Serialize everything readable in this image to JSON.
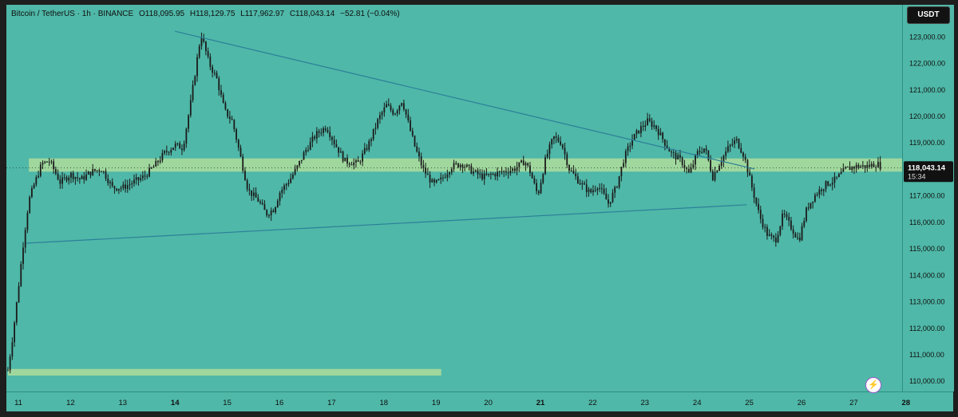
{
  "legend": {
    "symbol": "Bitcoin / TetherUS · 1h · BINANCE",
    "open": "O118,095.95",
    "high": "H118,129.75",
    "low": "L117,962.97",
    "close": "C118,043.14",
    "change": "−52.81 (−0.04%)"
  },
  "currency": "USDT",
  "price_tag": {
    "price": "118,043.14",
    "countdown": "15:34"
  },
  "colors": {
    "background": "#4fb8a8",
    "candle": "#1a1a1a",
    "trendline": "#2c7f9a",
    "zone": "#b9e29a"
  },
  "chart_data": {
    "type": "candlestick",
    "title": "",
    "xlabel": "",
    "ylabel": "",
    "ylim": [
      109600,
      124200
    ],
    "x_ticks": [
      "11",
      "12",
      "13",
      "14",
      "15",
      "16",
      "17",
      "18",
      "19",
      "20",
      "21",
      "22",
      "23",
      "24",
      "25",
      "26",
      "27",
      "28"
    ],
    "y_ticks": [
      110000,
      111000,
      112000,
      113000,
      114000,
      115000,
      116000,
      117000,
      118000,
      119000,
      120000,
      121000,
      122000,
      123000
    ],
    "y_tick_labels": [
      "110,000.00",
      "111,000.00",
      "112,000.00",
      "113,000.00",
      "114,000.00",
      "115,000.00",
      "116,000.00",
      "117,000.00",
      "118,000.00",
      "119,000.00",
      "120,000.00",
      "121,000.00",
      "122,000.00",
      "123,000.00"
    ],
    "price_path": [
      [
        10.8,
        110400
      ],
      [
        10.9,
        111800
      ],
      [
        11.0,
        113500
      ],
      [
        11.1,
        115300
      ],
      [
        11.2,
        116800
      ],
      [
        11.3,
        117400
      ],
      [
        11.45,
        118200
      ],
      [
        11.6,
        118300
      ],
      [
        11.8,
        117500
      ],
      [
        12.0,
        117800
      ],
      [
        12.2,
        117600
      ],
      [
        12.4,
        117900
      ],
      [
        12.6,
        118000
      ],
      [
        12.8,
        117300
      ],
      [
        13.0,
        117300
      ],
      [
        13.2,
        117500
      ],
      [
        13.4,
        117700
      ],
      [
        13.6,
        118100
      ],
      [
        13.8,
        118600
      ],
      [
        14.0,
        118900
      ],
      [
        14.15,
        118800
      ],
      [
        14.3,
        120500
      ],
      [
        14.45,
        122500
      ],
      [
        14.5,
        123100
      ],
      [
        14.65,
        122000
      ],
      [
        14.8,
        121400
      ],
      [
        14.95,
        120200
      ],
      [
        15.1,
        119800
      ],
      [
        15.25,
        118500
      ],
      [
        15.4,
        117200
      ],
      [
        15.6,
        116800
      ],
      [
        15.75,
        116300
      ],
      [
        15.9,
        116500
      ],
      [
        16.0,
        117100
      ],
      [
        16.2,
        117600
      ],
      [
        16.35,
        118100
      ],
      [
        16.5,
        118700
      ],
      [
        16.7,
        119300
      ],
      [
        16.9,
        119600
      ],
      [
        17.05,
        119000
      ],
      [
        17.25,
        118300
      ],
      [
        17.5,
        118200
      ],
      [
        17.7,
        118900
      ],
      [
        17.9,
        119900
      ],
      [
        18.05,
        120400
      ],
      [
        18.2,
        120100
      ],
      [
        18.35,
        120600
      ],
      [
        18.5,
        119500
      ],
      [
        18.6,
        118800
      ],
      [
        18.75,
        118000
      ],
      [
        18.95,
        117400
      ],
      [
        19.1,
        117600
      ],
      [
        19.3,
        118100
      ],
      [
        19.5,
        118200
      ],
      [
        19.7,
        117900
      ],
      [
        19.9,
        117700
      ],
      [
        20.1,
        117800
      ],
      [
        20.3,
        117900
      ],
      [
        20.5,
        118000
      ],
      [
        20.7,
        118300
      ],
      [
        20.8,
        117900
      ],
      [
        20.95,
        117000
      ],
      [
        21.1,
        118400
      ],
      [
        21.25,
        119200
      ],
      [
        21.4,
        119000
      ],
      [
        21.55,
        118000
      ],
      [
        21.75,
        117500
      ],
      [
        21.95,
        117100
      ],
      [
        22.1,
        117400
      ],
      [
        22.3,
        116700
      ],
      [
        22.45,
        117300
      ],
      [
        22.6,
        118400
      ],
      [
        22.75,
        119100
      ],
      [
        22.9,
        119500
      ],
      [
        23.05,
        119800
      ],
      [
        23.2,
        119600
      ],
      [
        23.35,
        119100
      ],
      [
        23.5,
        118600
      ],
      [
        23.7,
        118300
      ],
      [
        23.85,
        117800
      ],
      [
        24.0,
        118600
      ],
      [
        24.15,
        118800
      ],
      [
        24.3,
        117700
      ],
      [
        24.45,
        118300
      ],
      [
        24.6,
        118800
      ],
      [
        24.75,
        119100
      ],
      [
        24.9,
        118500
      ],
      [
        25.05,
        117300
      ],
      [
        25.2,
        116200
      ],
      [
        25.35,
        115500
      ],
      [
        25.5,
        115300
      ],
      [
        25.65,
        116300
      ],
      [
        25.8,
        115800
      ],
      [
        25.95,
        115300
      ],
      [
        26.1,
        116500
      ],
      [
        26.25,
        117000
      ],
      [
        26.45,
        117400
      ],
      [
        26.65,
        117600
      ],
      [
        26.85,
        118000
      ],
      [
        27.05,
        118100
      ],
      [
        27.25,
        118100
      ],
      [
        27.45,
        118200
      ],
      [
        27.55,
        118050
      ]
    ],
    "annotations": {
      "descending_trendline": [
        [
          14.0,
          123200
        ],
        [
          25.1,
          118000
        ]
      ],
      "ascending_trendline": [
        [
          11.15,
          115200
        ],
        [
          24.95,
          116650
        ]
      ],
      "zone_upper": {
        "from_x": 11.2,
        "to_x": 28.1,
        "y_low": 117900,
        "y_high": 118400
      },
      "zone_lower": {
        "from_x": 10.8,
        "to_x": 19.1,
        "y_low": 110200,
        "y_high": 110450
      }
    }
  }
}
